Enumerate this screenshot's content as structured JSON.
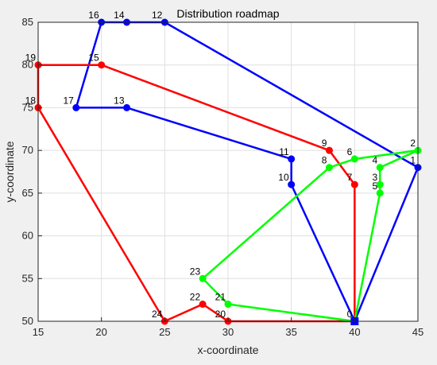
{
  "chart_data": {
    "type": "line",
    "title": "Distribution roadmap",
    "xlabel": "x-coordinate",
    "ylabel": "y-coordinate",
    "xlim": [
      15,
      45
    ],
    "ylim": [
      50,
      85
    ],
    "xticks": [
      "15",
      "20",
      "25",
      "30",
      "35",
      "40",
      "45"
    ],
    "yticks": [
      "50",
      "55",
      "60",
      "65",
      "70",
      "75",
      "80",
      "85"
    ],
    "grid": true,
    "nodes": [
      {
        "id": "0",
        "x": 40,
        "y": 50
      },
      {
        "id": "1",
        "x": 45,
        "y": 68
      },
      {
        "id": "2",
        "x": 45,
        "y": 70
      },
      {
        "id": "3",
        "x": 42,
        "y": 66
      },
      {
        "id": "4",
        "x": 42,
        "y": 68
      },
      {
        "id": "5",
        "x": 42,
        "y": 65
      },
      {
        "id": "6",
        "x": 40,
        "y": 69
      },
      {
        "id": "7",
        "x": 40,
        "y": 66
      },
      {
        "id": "8",
        "x": 38,
        "y": 68
      },
      {
        "id": "9",
        "x": 38,
        "y": 70
      },
      {
        "id": "10",
        "x": 35,
        "y": 66
      },
      {
        "id": "11",
        "x": 35,
        "y": 69
      },
      {
        "id": "12",
        "x": 25,
        "y": 85
      },
      {
        "id": "13",
        "x": 22,
        "y": 75
      },
      {
        "id": "14",
        "x": 22,
        "y": 85
      },
      {
        "id": "15",
        "x": 20,
        "y": 80
      },
      {
        "id": "16",
        "x": 20,
        "y": 85
      },
      {
        "id": "17",
        "x": 18,
        "y": 75
      },
      {
        "id": "18",
        "x": 15,
        "y": 75
      },
      {
        "id": "19",
        "x": 15,
        "y": 80
      },
      {
        "id": "20",
        "x": 30,
        "y": 50
      },
      {
        "id": "21",
        "x": 30,
        "y": 52
      },
      {
        "id": "22",
        "x": 28,
        "y": 52
      },
      {
        "id": "23",
        "x": 28,
        "y": 55
      },
      {
        "id": "24",
        "x": 25,
        "y": 50
      }
    ],
    "routes": [
      {
        "color": "#0000ff",
        "path": [
          "0",
          "10",
          "11",
          "13",
          "17",
          "16",
          "14",
          "12",
          "1",
          "0"
        ]
      },
      {
        "color": "#ff0000",
        "path": [
          "0",
          "7",
          "9",
          "15",
          "19",
          "18",
          "24",
          "22",
          "20",
          "0"
        ]
      },
      {
        "color": "#00ff00",
        "path": [
          "0",
          "21",
          "23",
          "8",
          "6",
          "2",
          "4",
          "3",
          "5",
          "0"
        ]
      }
    ],
    "depot": {
      "id": "0",
      "color": "#0000ff",
      "marker": "square"
    }
  }
}
